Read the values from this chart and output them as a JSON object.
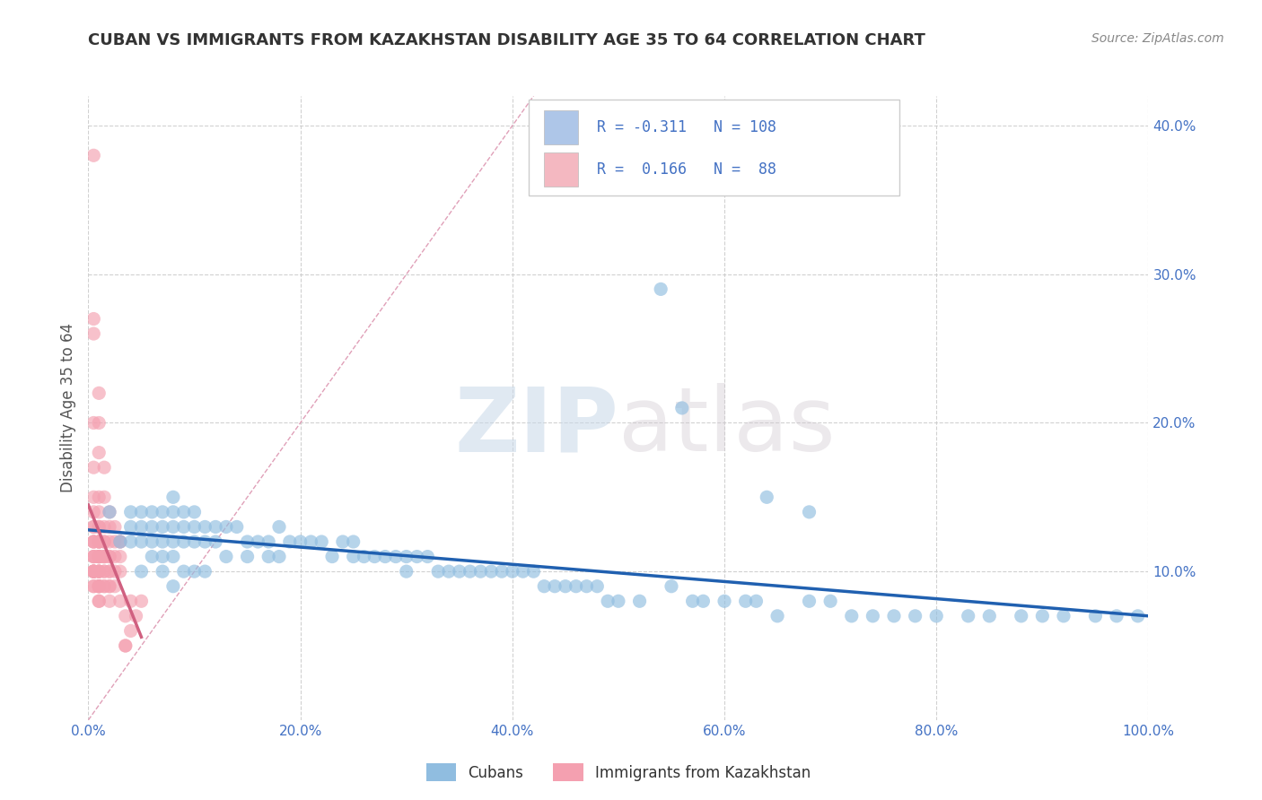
{
  "title": "CUBAN VS IMMIGRANTS FROM KAZAKHSTAN DISABILITY AGE 35 TO 64 CORRELATION CHART",
  "source": "Source: ZipAtlas.com",
  "ylabel": "Disability Age 35 to 64",
  "xlim": [
    0.0,
    1.0
  ],
  "ylim": [
    0.0,
    0.42
  ],
  "xticks": [
    0.0,
    0.2,
    0.4,
    0.6,
    0.8,
    1.0
  ],
  "xticklabels": [
    "0.0%",
    "20.0%",
    "40.0%",
    "60.0%",
    "80.0%",
    "100.0%"
  ],
  "yticks": [
    0.1,
    0.2,
    0.3,
    0.4
  ],
  "yticklabels": [
    "10.0%",
    "20.0%",
    "30.0%",
    "40.0%"
  ],
  "watermark_zip": "ZIP",
  "watermark_atlas": "atlas",
  "background_color": "#ffffff",
  "grid_color": "#cccccc",
  "scatter_blue": "#90bde0",
  "scatter_pink": "#f4a0b0",
  "line_blue": "#2060b0",
  "diagonal_color": "#d8a0b0",
  "title_color": "#333333",
  "source_color": "#888888",
  "tick_color": "#4472c4",
  "legend_blue_color": "#aec6e8",
  "legend_pink_color": "#f4b8c1",
  "legend_text_color": "#4472c4",
  "cubans_x": [
    0.02,
    0.03,
    0.04,
    0.04,
    0.04,
    0.05,
    0.05,
    0.05,
    0.05,
    0.06,
    0.06,
    0.06,
    0.06,
    0.07,
    0.07,
    0.07,
    0.07,
    0.07,
    0.08,
    0.08,
    0.08,
    0.08,
    0.08,
    0.08,
    0.09,
    0.09,
    0.09,
    0.09,
    0.1,
    0.1,
    0.1,
    0.1,
    0.11,
    0.11,
    0.11,
    0.12,
    0.12,
    0.13,
    0.13,
    0.14,
    0.15,
    0.15,
    0.16,
    0.17,
    0.17,
    0.18,
    0.18,
    0.19,
    0.2,
    0.21,
    0.22,
    0.23,
    0.24,
    0.25,
    0.25,
    0.26,
    0.27,
    0.28,
    0.29,
    0.3,
    0.3,
    0.31,
    0.32,
    0.33,
    0.34,
    0.35,
    0.36,
    0.37,
    0.38,
    0.39,
    0.4,
    0.41,
    0.42,
    0.43,
    0.44,
    0.45,
    0.46,
    0.47,
    0.48,
    0.49,
    0.5,
    0.52,
    0.55,
    0.57,
    0.58,
    0.6,
    0.62,
    0.63,
    0.65,
    0.68,
    0.7,
    0.72,
    0.74,
    0.76,
    0.78,
    0.8,
    0.83,
    0.85,
    0.88,
    0.9,
    0.92,
    0.95,
    0.97,
    0.99,
    0.54,
    0.56,
    0.64,
    0.68
  ],
  "cubans_y": [
    0.14,
    0.12,
    0.14,
    0.12,
    0.13,
    0.14,
    0.13,
    0.12,
    0.1,
    0.14,
    0.13,
    0.12,
    0.11,
    0.14,
    0.13,
    0.12,
    0.11,
    0.1,
    0.15,
    0.14,
    0.13,
    0.12,
    0.11,
    0.09,
    0.14,
    0.13,
    0.12,
    0.1,
    0.14,
    0.13,
    0.12,
    0.1,
    0.13,
    0.12,
    0.1,
    0.13,
    0.12,
    0.13,
    0.11,
    0.13,
    0.12,
    0.11,
    0.12,
    0.12,
    0.11,
    0.13,
    0.11,
    0.12,
    0.12,
    0.12,
    0.12,
    0.11,
    0.12,
    0.12,
    0.11,
    0.11,
    0.11,
    0.11,
    0.11,
    0.11,
    0.1,
    0.11,
    0.11,
    0.1,
    0.1,
    0.1,
    0.1,
    0.1,
    0.1,
    0.1,
    0.1,
    0.1,
    0.1,
    0.09,
    0.09,
    0.09,
    0.09,
    0.09,
    0.09,
    0.08,
    0.08,
    0.08,
    0.09,
    0.08,
    0.08,
    0.08,
    0.08,
    0.08,
    0.07,
    0.08,
    0.08,
    0.07,
    0.07,
    0.07,
    0.07,
    0.07,
    0.07,
    0.07,
    0.07,
    0.07,
    0.07,
    0.07,
    0.07,
    0.07,
    0.29,
    0.21,
    0.15,
    0.14
  ],
  "kazakh_x": [
    0.005,
    0.005,
    0.005,
    0.005,
    0.005,
    0.005,
    0.005,
    0.005,
    0.005,
    0.005,
    0.005,
    0.005,
    0.005,
    0.005,
    0.005,
    0.005,
    0.005,
    0.005,
    0.005,
    0.005,
    0.005,
    0.005,
    0.005,
    0.01,
    0.01,
    0.01,
    0.01,
    0.01,
    0.01,
    0.01,
    0.01,
    0.01,
    0.01,
    0.01,
    0.01,
    0.01,
    0.01,
    0.01,
    0.01,
    0.01,
    0.01,
    0.01,
    0.01,
    0.01,
    0.01,
    0.01,
    0.01,
    0.01,
    0.01,
    0.015,
    0.015,
    0.015,
    0.015,
    0.015,
    0.015,
    0.015,
    0.015,
    0.015,
    0.015,
    0.015,
    0.015,
    0.02,
    0.02,
    0.02,
    0.02,
    0.02,
    0.02,
    0.02,
    0.02,
    0.02,
    0.02,
    0.025,
    0.025,
    0.025,
    0.025,
    0.025,
    0.03,
    0.03,
    0.03,
    0.03,
    0.03,
    0.035,
    0.035,
    0.035,
    0.04,
    0.04,
    0.045,
    0.05
  ],
  "kazakh_y": [
    0.38,
    0.27,
    0.26,
    0.2,
    0.17,
    0.15,
    0.14,
    0.13,
    0.13,
    0.12,
    0.12,
    0.12,
    0.11,
    0.11,
    0.11,
    0.1,
    0.1,
    0.1,
    0.1,
    0.1,
    0.1,
    0.09,
    0.09,
    0.22,
    0.2,
    0.18,
    0.15,
    0.14,
    0.13,
    0.13,
    0.12,
    0.12,
    0.12,
    0.12,
    0.11,
    0.11,
    0.11,
    0.11,
    0.11,
    0.1,
    0.1,
    0.1,
    0.1,
    0.09,
    0.09,
    0.09,
    0.09,
    0.08,
    0.08,
    0.17,
    0.15,
    0.13,
    0.12,
    0.12,
    0.11,
    0.11,
    0.11,
    0.1,
    0.1,
    0.09,
    0.09,
    0.14,
    0.13,
    0.12,
    0.11,
    0.11,
    0.1,
    0.1,
    0.09,
    0.09,
    0.08,
    0.13,
    0.12,
    0.11,
    0.1,
    0.09,
    0.12,
    0.12,
    0.11,
    0.1,
    0.08,
    0.07,
    0.05,
    0.05,
    0.08,
    0.06,
    0.07,
    0.08
  ]
}
